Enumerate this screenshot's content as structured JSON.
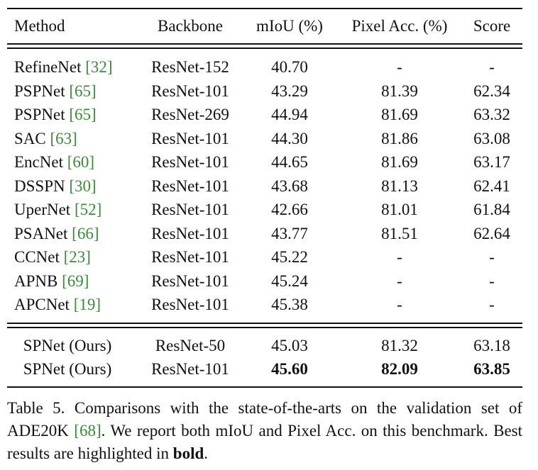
{
  "table": {
    "header": [
      "Method",
      "Backbone",
      "mIoU (%)",
      "Pixel Acc. (%)",
      "Score"
    ],
    "rows": [
      {
        "method": "RefineNet",
        "ref": "[32]",
        "backbone": "ResNet-152",
        "miou": "40.70",
        "pixel_acc": "-",
        "score": "-"
      },
      {
        "method": "PSPNet",
        "ref": "[65]",
        "backbone": "ResNet-101",
        "miou": "43.29",
        "pixel_acc": "81.39",
        "score": "62.34"
      },
      {
        "method": "PSPNet",
        "ref": "[65]",
        "backbone": "ResNet-269",
        "miou": "44.94",
        "pixel_acc": "81.69",
        "score": "63.32"
      },
      {
        "method": "SAC",
        "ref": "[63]",
        "backbone": "ResNet-101",
        "miou": "44.30",
        "pixel_acc": "81.86",
        "score": "63.08"
      },
      {
        "method": "EncNet",
        "ref": "[60]",
        "backbone": "ResNet-101",
        "miou": "44.65",
        "pixel_acc": "81.69",
        "score": "63.17"
      },
      {
        "method": "DSSPN",
        "ref": "[30]",
        "backbone": "ResNet-101",
        "miou": "43.68",
        "pixel_acc": "81.13",
        "score": "62.41"
      },
      {
        "method": "UperNet",
        "ref": "[52]",
        "backbone": "ResNet-101",
        "miou": "42.66",
        "pixel_acc": "81.01",
        "score": "61.84"
      },
      {
        "method": "PSANet",
        "ref": "[66]",
        "backbone": "ResNet-101",
        "miou": "43.77",
        "pixel_acc": "81.51",
        "score": "62.64"
      },
      {
        "method": "CCNet",
        "ref": "[23]",
        "backbone": "ResNet-101",
        "miou": "45.22",
        "pixel_acc": "-",
        "score": "-"
      },
      {
        "method": "APNB",
        "ref": "[69]",
        "backbone": "ResNet-101",
        "miou": "45.24",
        "pixel_acc": "-",
        "score": "-"
      },
      {
        "method": "APCNet",
        "ref": "[19]",
        "backbone": "ResNet-101",
        "miou": "45.38",
        "pixel_acc": "-",
        "score": "-"
      }
    ],
    "ours": [
      {
        "method": "SPNet (Ours)",
        "backbone": "ResNet-50",
        "miou": "45.03",
        "pixel_acc": "81.32",
        "score": "63.18"
      },
      {
        "method": "SPNet (Ours)",
        "backbone": "ResNet-101",
        "miou": "45.60",
        "pixel_acc": "82.09",
        "score": "63.85",
        "bold": true
      }
    ]
  },
  "caption": {
    "before": "Table 5. Comparisons with the state-of-the-arts on the validation set of ADE20K ",
    "ref": "[68]",
    "middle": ". We report both mIoU and Pixel Acc. on this benchmark. Best results are highlighted in ",
    "bold": "bold",
    "end": "."
  }
}
